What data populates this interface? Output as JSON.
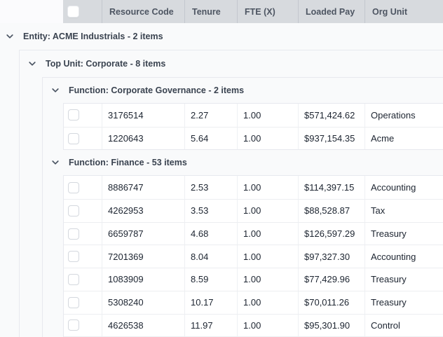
{
  "header": {
    "columns": [
      "Resource Code",
      "Tenure",
      "FTE (X)",
      "Loaded Pay",
      "Org Unit"
    ]
  },
  "colors": {
    "header_bg": "#d7dade",
    "header_text": "#4d5562",
    "panel_bg": "#f9fafb",
    "row_bg": "#ffffff",
    "border": "#e7e9ee"
  },
  "groups": [
    {
      "label": "Entity: ACME Industrials - 2 items",
      "children": [
        {
          "label": "Top Unit: Corporate - 8 items",
          "children": [
            {
              "label": "Function: Corporate Governance - 2 items",
              "rows": [
                {
                  "resource_code": "3176514",
                  "tenure": "2.27",
                  "fte": "1.00",
                  "loaded_pay": "$571,424.62",
                  "org_unit": "Operations"
                },
                {
                  "resource_code": "1220643",
                  "tenure": "5.64",
                  "fte": "1.00",
                  "loaded_pay": "$937,154.35",
                  "org_unit": "Acme"
                }
              ]
            },
            {
              "label": "Function: Finance - 53 items",
              "rows": [
                {
                  "resource_code": "8886747",
                  "tenure": "2.53",
                  "fte": "1.00",
                  "loaded_pay": "$114,397.15",
                  "org_unit": "Accounting"
                },
                {
                  "resource_code": "4262953",
                  "tenure": "3.53",
                  "fte": "1.00",
                  "loaded_pay": "$88,528.87",
                  "org_unit": "Tax"
                },
                {
                  "resource_code": "6659787",
                  "tenure": "4.68",
                  "fte": "1.00",
                  "loaded_pay": "$126,597.29",
                  "org_unit": "Treasury"
                },
                {
                  "resource_code": "7201369",
                  "tenure": "8.04",
                  "fte": "1.00",
                  "loaded_pay": "$97,327.30",
                  "org_unit": "Accounting"
                },
                {
                  "resource_code": "1083909",
                  "tenure": "8.59",
                  "fte": "1.00",
                  "loaded_pay": "$77,429.96",
                  "org_unit": "Treasury"
                },
                {
                  "resource_code": "5308240",
                  "tenure": "10.17",
                  "fte": "1.00",
                  "loaded_pay": "$70,011.26",
                  "org_unit": "Treasury"
                },
                {
                  "resource_code": "4626538",
                  "tenure": "11.97",
                  "fte": "1.00",
                  "loaded_pay": "$95,301.90",
                  "org_unit": "Control"
                }
              ]
            }
          ]
        }
      ]
    }
  ]
}
